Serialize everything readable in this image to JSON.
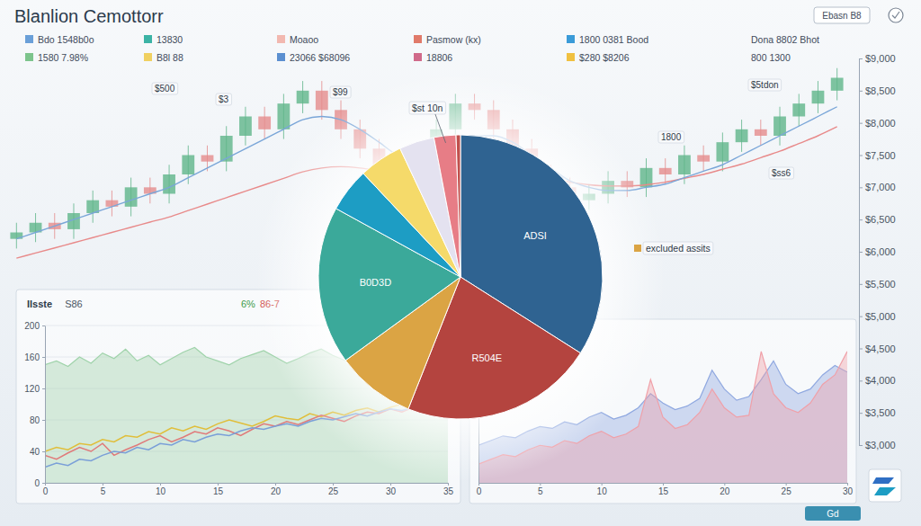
{
  "header": {
    "title": "Blanlion Cemottorr",
    "legend": [
      {
        "text": "Bdo 1548b0o",
        "color": "#6a9fd8"
      },
      {
        "text": "13830",
        "color": "#3bb3a5"
      },
      {
        "text": "Moaoo",
        "color": "#f2b8b0"
      },
      {
        "text": "Pasmow (kx)",
        "color": "#e07a6a"
      },
      {
        "text": "1800 0381 Bood",
        "color": "#3a9bd8"
      },
      {
        "text": "Dona 8802 Bhot"
      },
      {
        "text": "1580 7.98%",
        "color": "#7cc48c"
      },
      {
        "text": "B8l 88",
        "color": "#f0d060"
      },
      {
        "text": "23066 $68096",
        "color": "#5b8fd0"
      },
      {
        "text": "18806",
        "color": "#d06a8a"
      },
      {
        "text": "$280 $8206",
        "color": "#f0c040"
      },
      {
        "text": "800 1300"
      }
    ],
    "controls": [
      "Ebasn B8"
    ]
  },
  "chart_data": [
    {
      "type": "candlestick",
      "categories": [
        null,
        null,
        null,
        null,
        null,
        null,
        null,
        null,
        null,
        null,
        null,
        null,
        null,
        null,
        null,
        null,
        null,
        null,
        null,
        null,
        null,
        null,
        null,
        null,
        null,
        null,
        null,
        null,
        null,
        null,
        null,
        null,
        null,
        null,
        null,
        null,
        null,
        null,
        null,
        null,
        null,
        null,
        null,
        null
      ],
      "open": [
        6200,
        6300,
        6450,
        6350,
        6600,
        6800,
        6700,
        7000,
        6900,
        7200,
        7500,
        7400,
        7800,
        8100,
        7900,
        8300,
        8500,
        8200,
        7900,
        7600,
        7300,
        7000,
        7500,
        7900,
        8300,
        8200,
        7900,
        7600,
        7200,
        7000,
        6800,
        6900,
        7100,
        7000,
        7300,
        7200,
        7500,
        7400,
        7700,
        7900,
        7800,
        8100,
        8300,
        8500
      ],
      "high": [
        6450,
        6600,
        6600,
        6750,
        6950,
        6950,
        7150,
        7150,
        7350,
        7650,
        7650,
        7950,
        8250,
        8250,
        8450,
        8650,
        8650,
        8350,
        8050,
        7750,
        7450,
        7650,
        8050,
        8450,
        8450,
        8350,
        8050,
        7750,
        7350,
        7150,
        7050,
        7250,
        7250,
        7450,
        7450,
        7650,
        7650,
        7850,
        8050,
        8050,
        8250,
        8450,
        8650,
        8850
      ],
      "low": [
        6050,
        6150,
        6200,
        6200,
        6450,
        6550,
        6550,
        6750,
        6750,
        7050,
        7250,
        7250,
        7650,
        7750,
        7750,
        8150,
        8050,
        7750,
        7450,
        7150,
        6850,
        6850,
        7350,
        7750,
        8050,
        7750,
        7450,
        7050,
        6850,
        6650,
        6650,
        6750,
        6850,
        6850,
        7050,
        7050,
        7250,
        7250,
        7550,
        7650,
        7650,
        7950,
        8150,
        8350
      ],
      "close": [
        6300,
        6450,
        6350,
        6600,
        6800,
        6700,
        7000,
        6900,
        7200,
        7500,
        7400,
        7800,
        8100,
        7900,
        8300,
        8500,
        8200,
        7900,
        7600,
        7300,
        7000,
        7500,
        7900,
        8300,
        8200,
        7900,
        7600,
        7200,
        7000,
        6800,
        6900,
        7100,
        7000,
        7300,
        7200,
        7500,
        7400,
        7700,
        7900,
        7800,
        8100,
        8300,
        8500,
        8700
      ],
      "series": [
        {
          "type": "line",
          "color": "#e88a8a",
          "values": [
            5900,
            5980,
            6060,
            6140,
            6220,
            6300,
            6380,
            6460,
            6540,
            6640,
            6740,
            6840,
            6940,
            7040,
            7140,
            7240,
            7300,
            7320,
            7300,
            7260,
            7220,
            7220,
            7260,
            7300,
            7320,
            7300,
            7260,
            7200,
            7140,
            7080,
            7040,
            7020,
            7020,
            7040,
            7080,
            7140,
            7200,
            7280,
            7360,
            7460,
            7560,
            7680,
            7800,
            7940
          ]
        },
        {
          "type": "line",
          "color": "#7aa6d8",
          "values": [
            6200,
            6300,
            6400,
            6500,
            6600,
            6700,
            6800,
            6900,
            7000,
            7150,
            7300,
            7450,
            7600,
            7750,
            7900,
            8050,
            8100,
            8050,
            7900,
            7700,
            7500,
            7450,
            7550,
            7700,
            7800,
            7800,
            7700,
            7500,
            7300,
            7100,
            7000,
            6950,
            6950,
            7000,
            7050,
            7150,
            7250,
            7350,
            7500,
            7650,
            7800,
            7950,
            8100,
            8250
          ]
        }
      ],
      "ylim": [
        3000,
        9000
      ],
      "yticks": [
        {
          "value": 3000,
          "label": "$3,000"
        },
        {
          "value": 3500,
          "label": "$3,500"
        },
        {
          "value": 4000,
          "label": "$4,000"
        },
        {
          "value": 4500,
          "label": "$4,500"
        },
        {
          "value": 5000,
          "label": "$5,000"
        },
        {
          "value": 5500,
          "label": "$5,500"
        },
        {
          "value": 6000,
          "label": "$6,000"
        },
        {
          "value": 6500,
          "label": "$6,500"
        },
        {
          "value": 7000,
          "label": "$7,000"
        },
        {
          "value": 7500,
          "label": "$7,500"
        },
        {
          "value": 8000,
          "label": "$8,000"
        },
        {
          "value": 8500,
          "label": "$8,500"
        },
        {
          "value": 9000,
          "label": "$9,000"
        }
      ],
      "tick_labels": "y",
      "annotations": [
        "$500",
        "$3",
        "$99",
        "1800",
        "$5tdon",
        "$ss6"
      ]
    },
    {
      "type": "pie",
      "categories": [
        "ADSI",
        "R504E",
        null,
        "B0D3D",
        null,
        null,
        null,
        null,
        null
      ],
      "values": [
        34,
        22,
        9,
        18,
        5,
        5,
        4,
        2.5,
        0.5
      ],
      "colors": [
        "#2f6391",
        "#b4443f",
        "#dba444",
        "#3ba99a",
        "#1d9dc4",
        "#f5da6a",
        "#e4e2f0",
        "#e77d86",
        "#c0504d"
      ],
      "annotations": [
        {
          "text": "$st 10n"
        },
        {
          "text": "excluded assits",
          "color": "#dba444"
        }
      ]
    },
    {
      "type": "line",
      "title": "Ilsste",
      "subtitle": "S86",
      "annotations": [
        {
          "text": "6%",
          "color": "#3f9a4a"
        },
        {
          "text": "86-7",
          "color": "#d0504a"
        }
      ],
      "x": [
        0,
        1,
        2,
        3,
        4,
        5,
        6,
        7,
        8,
        9,
        10,
        11,
        12,
        13,
        14,
        15,
        16,
        17,
        18,
        19,
        20,
        21,
        22,
        23,
        24,
        25,
        26,
        27,
        28,
        29,
        30,
        31,
        32,
        33,
        34,
        35
      ],
      "xlim": [
        0,
        35
      ],
      "xticks": [
        0,
        5,
        10,
        15,
        20,
        25,
        30,
        35
      ],
      "ylim": [
        0,
        200
      ],
      "yticks": [
        0,
        40,
        80,
        120,
        160,
        200
      ],
      "grid": true,
      "series": [
        {
          "type": "area",
          "color": "#9fd3aa",
          "values": [
            150,
            155,
            148,
            160,
            152,
            165,
            158,
            170,
            155,
            162,
            150,
            158,
            166,
            172,
            160,
            155,
            150,
            158,
            163,
            168,
            160,
            152,
            158,
            165,
            170,
            162,
            156,
            150,
            158,
            164,
            168,
            160,
            155,
            162,
            158,
            150
          ]
        },
        {
          "type": "line",
          "color": "#e0be3a",
          "values": [
            40,
            45,
            42,
            50,
            48,
            55,
            52,
            60,
            58,
            65,
            62,
            70,
            66,
            72,
            68,
            75,
            80,
            76,
            72,
            78,
            85,
            82,
            80,
            88,
            84,
            90,
            86,
            92,
            95,
            90,
            96,
            100,
            98,
            105,
            102,
            108
          ]
        },
        {
          "type": "line",
          "color": "#e07a7a",
          "values": [
            35,
            30,
            38,
            45,
            40,
            50,
            35,
            42,
            48,
            55,
            60,
            52,
            58,
            65,
            62,
            70,
            66,
            60,
            68,
            75,
            72,
            78,
            74,
            80,
            86,
            82,
            78,
            85,
            90,
            88,
            94,
            90,
            96,
            100,
            95,
            98
          ]
        },
        {
          "type": "line",
          "color": "#7a9fd8",
          "values": [
            20,
            25,
            22,
            30,
            28,
            35,
            40,
            38,
            45,
            42,
            50,
            48,
            55,
            52,
            58,
            62,
            60,
            66,
            70,
            68,
            72,
            75,
            72,
            78,
            82,
            80,
            84,
            88,
            85,
            90,
            94,
            92,
            96,
            98,
            100,
            104
          ]
        }
      ]
    },
    {
      "type": "area",
      "x": [
        0,
        1,
        2,
        3,
        4,
        5,
        6,
        7,
        8,
        9,
        10,
        11,
        12,
        13,
        14,
        15,
        16,
        17,
        18,
        19,
        20,
        21,
        22,
        23,
        24,
        25,
        26,
        27,
        28,
        29,
        30
      ],
      "xlim": [
        0,
        30
      ],
      "xticks": [
        0,
        5,
        10,
        15,
        20,
        25,
        30
      ],
      "ylim": [
        0,
        160
      ],
      "tick_labels": "x",
      "series": [
        {
          "color": "#8fa8e0",
          "values": [
            40,
            45,
            50,
            48,
            55,
            60,
            58,
            65,
            62,
            70,
            75,
            68,
            72,
            80,
            95,
            85,
            78,
            82,
            90,
            120,
            100,
            88,
            92,
            110,
            130,
            105,
            95,
            100,
            115,
            125,
            118
          ]
        },
        {
          "color": "#f0a0a8",
          "values": [
            20,
            25,
            30,
            28,
            35,
            40,
            38,
            45,
            42,
            50,
            55,
            48,
            52,
            60,
            110,
            70,
            58,
            62,
            75,
            100,
            80,
            70,
            72,
            140,
            95,
            80,
            75,
            85,
            105,
            115,
            140
          ]
        }
      ]
    }
  ],
  "footer": {
    "button": "Gd"
  }
}
